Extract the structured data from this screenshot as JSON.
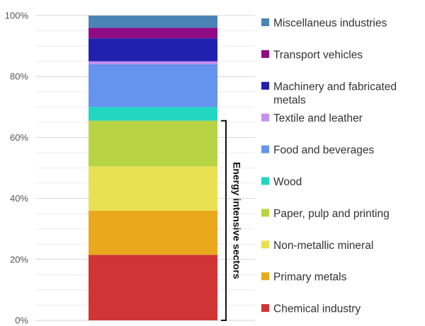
{
  "chart_data": {
    "type": "bar",
    "stacked": true,
    "percent": true,
    "categories": [
      ""
    ],
    "ylim": [
      0,
      100
    ],
    "yticks": [
      "0%",
      "20%",
      "40%",
      "60%",
      "80%",
      "100%"
    ],
    "grid": true,
    "legend_position": "right",
    "series": [
      {
        "name": "Chemical industry",
        "values": [
          21.5
        ],
        "color": "#d03434"
      },
      {
        "name": "Primary metals",
        "values": [
          14.5
        ],
        "color": "#eaa91c"
      },
      {
        "name": "Non-metallic mineral",
        "values": [
          14.5
        ],
        "color": "#e8e152"
      },
      {
        "name": "Paper, pulp and printing",
        "values": [
          15
        ],
        "color": "#b8d444"
      },
      {
        "name": "Wood",
        "values": [
          4.5
        ],
        "color": "#22d6c2"
      },
      {
        "name": "Food and beverages",
        "values": [
          14
        ],
        "color": "#6494ee"
      },
      {
        "name": "Textile and leather",
        "values": [
          1
        ],
        "color": "#c48ef2"
      },
      {
        "name": "Machinery and fabricated metals",
        "values": [
          7.5
        ],
        "color": "#2121b0"
      },
      {
        "name": "Transport vehicles",
        "values": [
          3.5
        ],
        "color": "#8e0b84"
      },
      {
        "name": "Miscellaneus industries",
        "values": [
          4
        ],
        "color": "#4a83b5"
      }
    ],
    "annotations": [
      {
        "text": "Energy intensive sectors",
        "from": 0,
        "to": 65.5
      }
    ]
  }
}
